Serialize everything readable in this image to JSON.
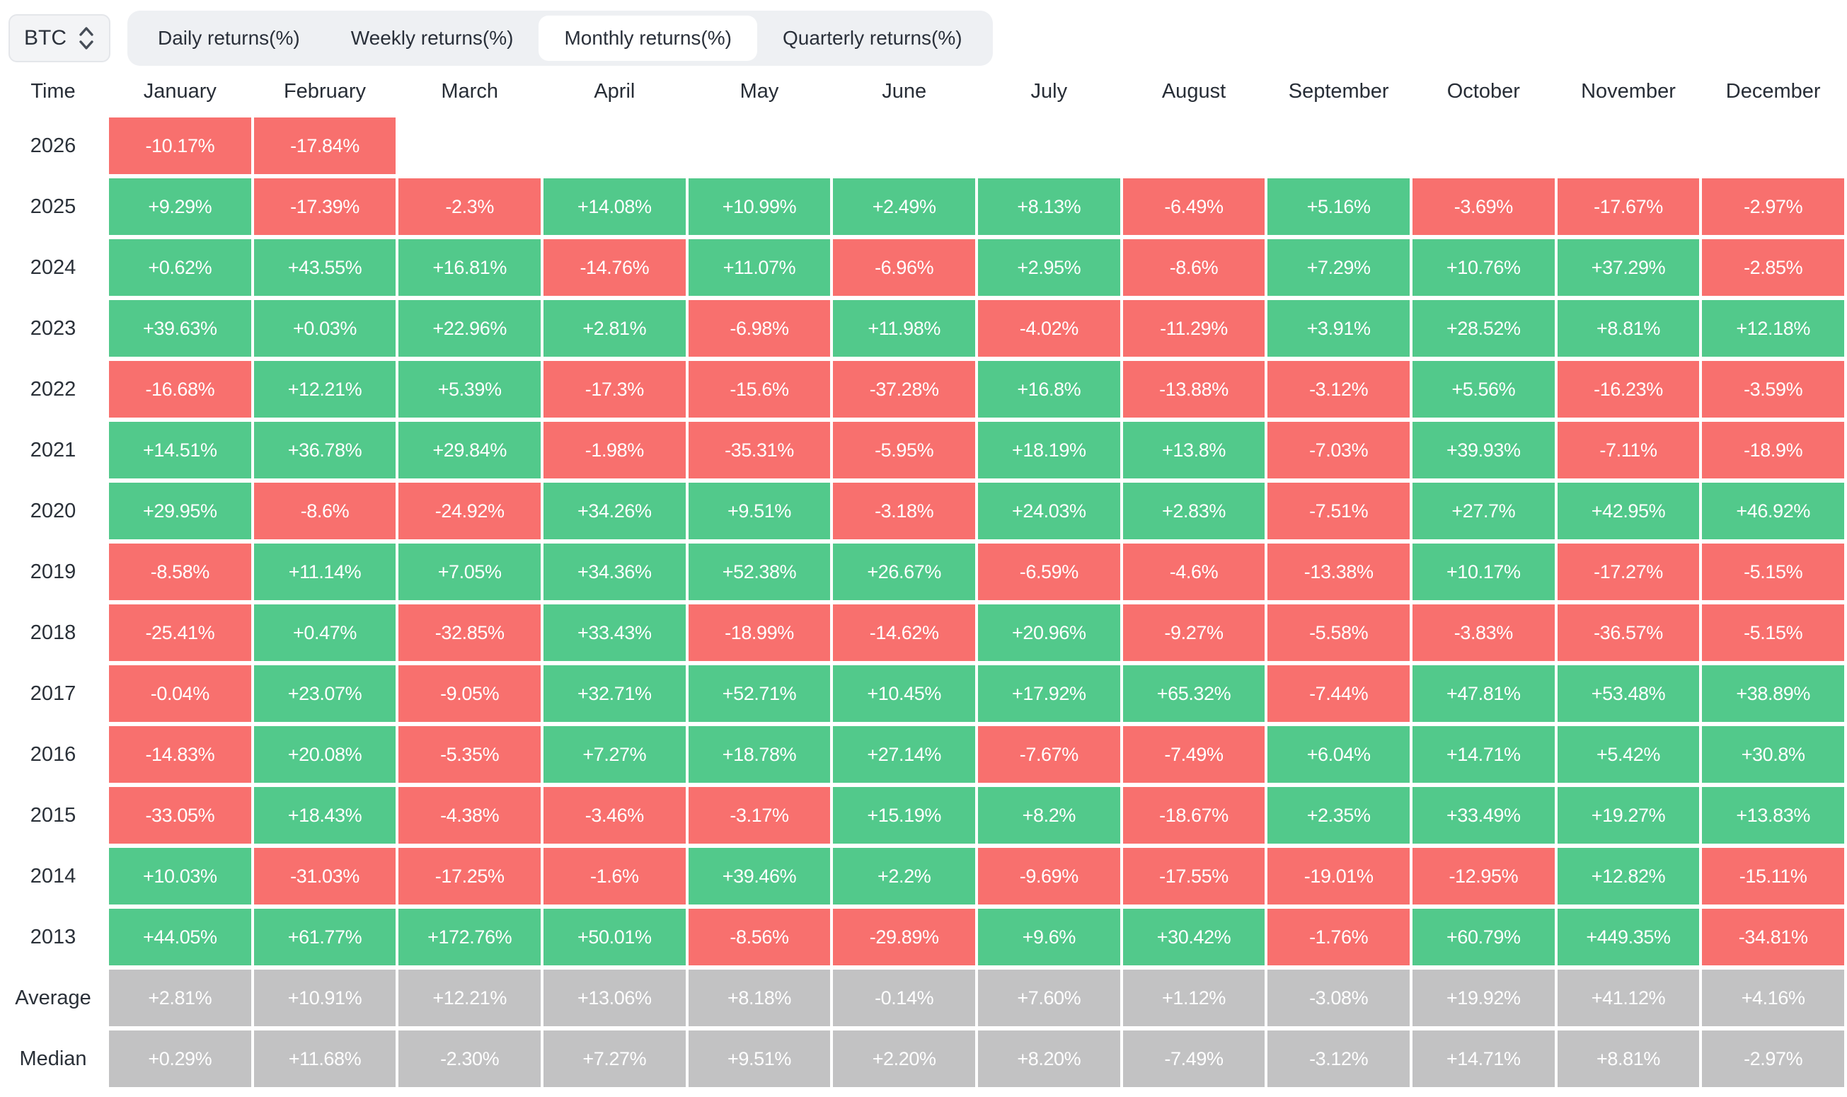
{
  "toolbar": {
    "symbol": "BTC",
    "tabs": [
      {
        "label": "Daily returns(%)",
        "active": false
      },
      {
        "label": "Weekly returns(%)",
        "active": false
      },
      {
        "label": "Monthly returns(%)",
        "active": true
      },
      {
        "label": "Quarterly returns(%)",
        "active": false
      }
    ]
  },
  "palette": {
    "positive": "#52c98b",
    "negative": "#f8706e",
    "neutral": "#c2c2c3",
    "tab_bar_bg": "#eef0f3",
    "active_tab_bg": "#ffffff",
    "text_dark": "#272d36",
    "cell_text": "#ffffff"
  },
  "chart_data": {
    "type": "heatmap",
    "title": "Monthly returns(%)",
    "corner_label": "Time",
    "months": [
      "January",
      "February",
      "March",
      "April",
      "May",
      "June",
      "July",
      "August",
      "September",
      "October",
      "November",
      "December"
    ],
    "rows": [
      {
        "label": "2026",
        "type": "year",
        "cells": [
          "-10.17%",
          "-17.84%",
          "",
          "",
          "",
          "",
          "",
          "",
          "",
          "",
          "",
          ""
        ]
      },
      {
        "label": "2025",
        "type": "year",
        "cells": [
          "+9.29%",
          "-17.39%",
          "-2.3%",
          "+14.08%",
          "+10.99%",
          "+2.49%",
          "+8.13%",
          "-6.49%",
          "+5.16%",
          "-3.69%",
          "-17.67%",
          "-2.97%"
        ]
      },
      {
        "label": "2024",
        "type": "year",
        "cells": [
          "+0.62%",
          "+43.55%",
          "+16.81%",
          "-14.76%",
          "+11.07%",
          "-6.96%",
          "+2.95%",
          "-8.6%",
          "+7.29%",
          "+10.76%",
          "+37.29%",
          "-2.85%"
        ]
      },
      {
        "label": "2023",
        "type": "year",
        "cells": [
          "+39.63%",
          "+0.03%",
          "+22.96%",
          "+2.81%",
          "-6.98%",
          "+11.98%",
          "-4.02%",
          "-11.29%",
          "+3.91%",
          "+28.52%",
          "+8.81%",
          "+12.18%"
        ]
      },
      {
        "label": "2022",
        "type": "year",
        "cells": [
          "-16.68%",
          "+12.21%",
          "+5.39%",
          "-17.3%",
          "-15.6%",
          "-37.28%",
          "+16.8%",
          "-13.88%",
          "-3.12%",
          "+5.56%",
          "-16.23%",
          "-3.59%"
        ]
      },
      {
        "label": "2021",
        "type": "year",
        "cells": [
          "+14.51%",
          "+36.78%",
          "+29.84%",
          "-1.98%",
          "-35.31%",
          "-5.95%",
          "+18.19%",
          "+13.8%",
          "-7.03%",
          "+39.93%",
          "-7.11%",
          "-18.9%"
        ]
      },
      {
        "label": "2020",
        "type": "year",
        "cells": [
          "+29.95%",
          "-8.6%",
          "-24.92%",
          "+34.26%",
          "+9.51%",
          "-3.18%",
          "+24.03%",
          "+2.83%",
          "-7.51%",
          "+27.7%",
          "+42.95%",
          "+46.92%"
        ]
      },
      {
        "label": "2019",
        "type": "year",
        "cells": [
          "-8.58%",
          "+11.14%",
          "+7.05%",
          "+34.36%",
          "+52.38%",
          "+26.67%",
          "-6.59%",
          "-4.6%",
          "-13.38%",
          "+10.17%",
          "-17.27%",
          "-5.15%"
        ]
      },
      {
        "label": "2018",
        "type": "year",
        "cells": [
          "-25.41%",
          "+0.47%",
          "-32.85%",
          "+33.43%",
          "-18.99%",
          "-14.62%",
          "+20.96%",
          "-9.27%",
          "-5.58%",
          "-3.83%",
          "-36.57%",
          "-5.15%"
        ]
      },
      {
        "label": "2017",
        "type": "year",
        "cells": [
          "-0.04%",
          "+23.07%",
          "-9.05%",
          "+32.71%",
          "+52.71%",
          "+10.45%",
          "+17.92%",
          "+65.32%",
          "-7.44%",
          "+47.81%",
          "+53.48%",
          "+38.89%"
        ]
      },
      {
        "label": "2016",
        "type": "year",
        "cells": [
          "-14.83%",
          "+20.08%",
          "-5.35%",
          "+7.27%",
          "+18.78%",
          "+27.14%",
          "-7.67%",
          "-7.49%",
          "+6.04%",
          "+14.71%",
          "+5.42%",
          "+30.8%"
        ]
      },
      {
        "label": "2015",
        "type": "year",
        "cells": [
          "-33.05%",
          "+18.43%",
          "-4.38%",
          "-3.46%",
          "-3.17%",
          "+15.19%",
          "+8.2%",
          "-18.67%",
          "+2.35%",
          "+33.49%",
          "+19.27%",
          "+13.83%"
        ]
      },
      {
        "label": "2014",
        "type": "year",
        "cells": [
          "+10.03%",
          "-31.03%",
          "-17.25%",
          "-1.6%",
          "+39.46%",
          "+2.2%",
          "-9.69%",
          "-17.55%",
          "-19.01%",
          "-12.95%",
          "+12.82%",
          "-15.11%"
        ]
      },
      {
        "label": "2013",
        "type": "year",
        "cells": [
          "+44.05%",
          "+61.77%",
          "+172.76%",
          "+50.01%",
          "-8.56%",
          "-29.89%",
          "+9.6%",
          "+30.42%",
          "-1.76%",
          "+60.79%",
          "+449.35%",
          "-34.81%"
        ]
      },
      {
        "label": "Average",
        "type": "summary",
        "cells": [
          "+2.81%",
          "+10.91%",
          "+12.21%",
          "+13.06%",
          "+8.18%",
          "-0.14%",
          "+7.60%",
          "+1.12%",
          "-3.08%",
          "+19.92%",
          "+41.12%",
          "+4.16%"
        ]
      },
      {
        "label": "Median",
        "type": "summary",
        "cells": [
          "+0.29%",
          "+11.68%",
          "-2.30%",
          "+7.27%",
          "+9.51%",
          "+2.20%",
          "+8.20%",
          "-7.49%",
          "-3.12%",
          "+14.71%",
          "+8.81%",
          "-2.97%"
        ]
      }
    ]
  }
}
